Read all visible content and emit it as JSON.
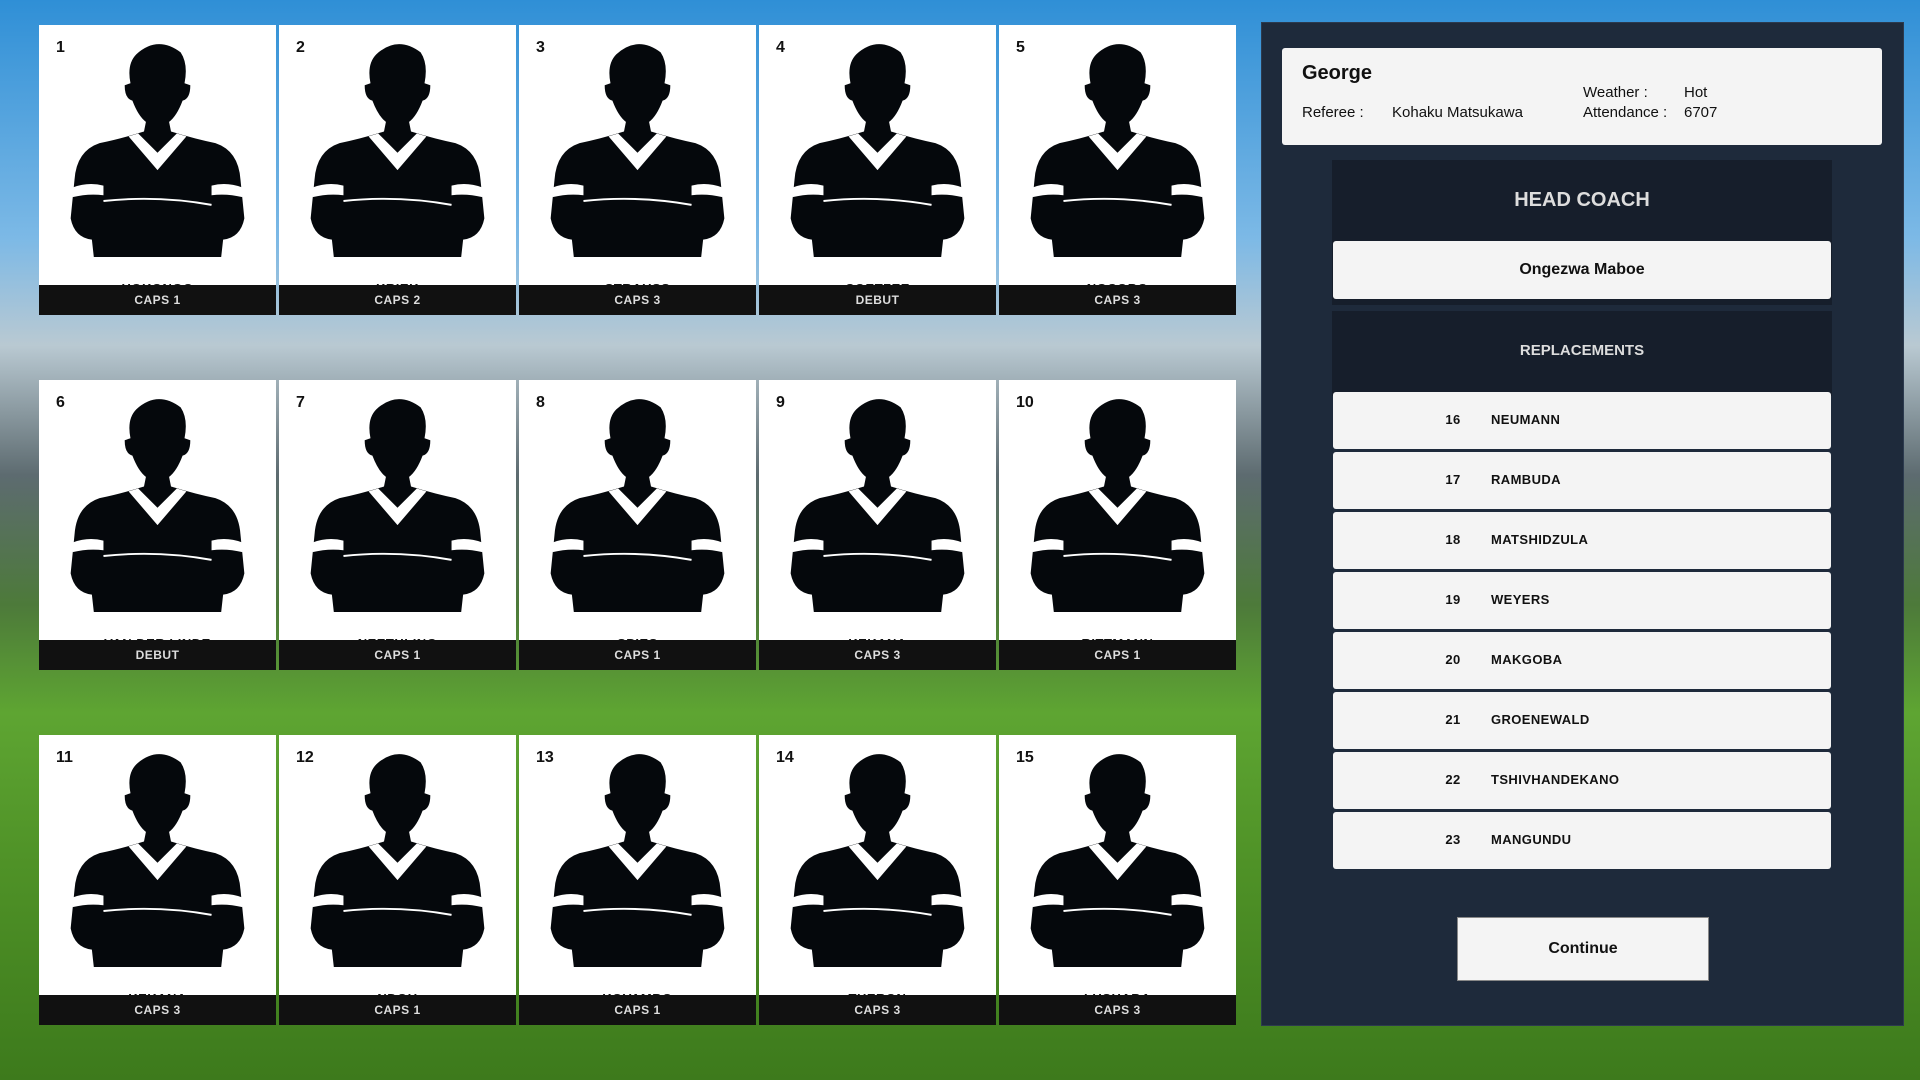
{
  "players": [
    {
      "number": "1",
      "name": "HOKONGO",
      "caps": "CAPS 1"
    },
    {
      "number": "2",
      "name": "KRIEK",
      "caps": "CAPS 2"
    },
    {
      "number": "3",
      "name": "STRAUSS",
      "caps": "CAPS 3"
    },
    {
      "number": "4",
      "name": "COETZEE",
      "caps": "DEBUT"
    },
    {
      "number": "5",
      "name": "NGCOBO",
      "caps": "CAPS 3"
    },
    {
      "number": "6",
      "name": "VAN DER LINDE",
      "caps": "DEBUT"
    },
    {
      "number": "7",
      "name": "NEETHLING",
      "caps": "CAPS 1"
    },
    {
      "number": "8",
      "name": "SPIES",
      "caps": "CAPS 1"
    },
    {
      "number": "9",
      "name": "KEKANA",
      "caps": "CAPS 3"
    },
    {
      "number": "10",
      "name": "RITTMANN",
      "caps": "CAPS 1"
    },
    {
      "number": "11",
      "name": "KEKANA",
      "caps": "CAPS 3"
    },
    {
      "number": "12",
      "name": "NDOU",
      "caps": "CAPS 1"
    },
    {
      "number": "13",
      "name": "KOVAMBO",
      "caps": "CAPS 1"
    },
    {
      "number": "14",
      "name": "THERON",
      "caps": "CAPS 3"
    },
    {
      "number": "15",
      "name": "LUSHABA",
      "caps": "CAPS 3"
    }
  ],
  "match": {
    "venue": "George",
    "referee_label": "Referee :",
    "referee": "Kohaku Matsukawa",
    "weather_label": "Weather :",
    "weather": "Hot",
    "attendance_label": "Attendance :",
    "attendance": "6707"
  },
  "head_coach": {
    "title": "HEAD COACH",
    "name": "Ongezwa Maboe"
  },
  "replacements": {
    "title": "REPLACEMENTS",
    "items": [
      {
        "number": "16",
        "name": "NEUMANN"
      },
      {
        "number": "17",
        "name": "RAMBUDA"
      },
      {
        "number": "18",
        "name": "MATSHIDZULA"
      },
      {
        "number": "19",
        "name": "WEYERS"
      },
      {
        "number": "20",
        "name": "MAKGOBA"
      },
      {
        "number": "21",
        "name": "GROENEWALD"
      },
      {
        "number": "22",
        "name": "TSHIVHANDEKANO"
      },
      {
        "number": "23",
        "name": "MANGUNDU"
      }
    ]
  },
  "continue_label": "Continue",
  "icons": {
    "player": "player-silhouette-icon"
  }
}
